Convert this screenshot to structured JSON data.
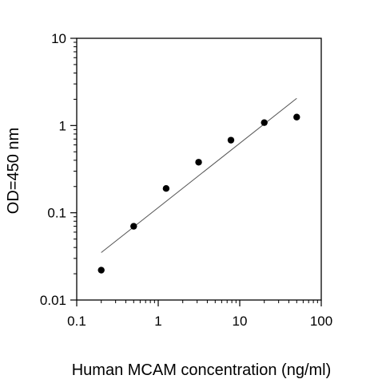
{
  "chart_data": {
    "type": "scatter",
    "title": "",
    "xlabel": "Human MCAM concentration (ng/ml)",
    "ylabel": "OD=450 nm",
    "x_scale": "log",
    "y_scale": "log",
    "xlim": [
      0.1,
      100
    ],
    "ylim": [
      0.01,
      10
    ],
    "x_ticks": [
      {
        "value": 0.1,
        "label": "0.1"
      },
      {
        "value": 1,
        "label": "1"
      },
      {
        "value": 10,
        "label": "10"
      },
      {
        "value": 100,
        "label": "100"
      }
    ],
    "y_ticks": [
      {
        "value": 0.01,
        "label": "0.01"
      },
      {
        "value": 0.1,
        "label": "0.1"
      },
      {
        "value": 1,
        "label": "1"
      },
      {
        "value": 10,
        "label": "10"
      }
    ],
    "grid": false,
    "legend": "none",
    "series": [
      {
        "points": [
          {
            "x": 0.2,
            "y": 0.022
          },
          {
            "x": 0.5,
            "y": 0.07
          },
          {
            "x": 1.25,
            "y": 0.19
          },
          {
            "x": 3.13,
            "y": 0.38
          },
          {
            "x": 7.8,
            "y": 0.68
          },
          {
            "x": 20,
            "y": 1.08
          },
          {
            "x": 50,
            "y": 1.25
          }
        ],
        "color": "#000000"
      }
    ],
    "fit_line": {
      "x": [
        0.2,
        50
      ],
      "y": [
        0.035,
        2.05
      ],
      "color": "#555555"
    }
  }
}
